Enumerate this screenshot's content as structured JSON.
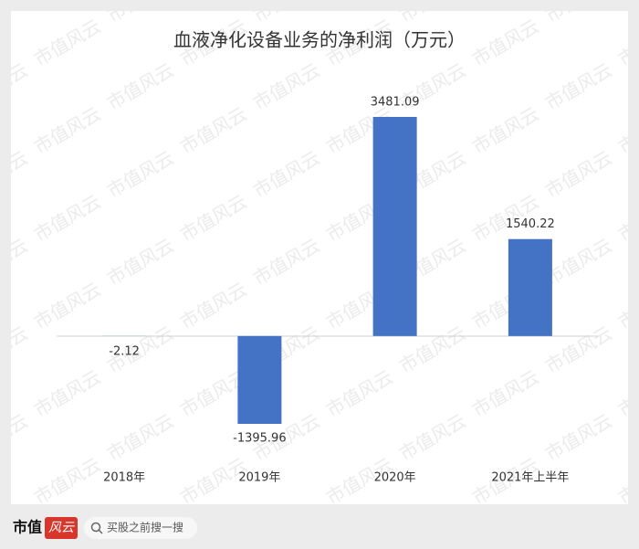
{
  "chart_data": {
    "type": "bar",
    "title": "血液净化设备业务的净利润（万元）",
    "categories": [
      "2018年",
      "2019年",
      "2020年",
      "2021年上半年"
    ],
    "values": [
      -2.12,
      -1395.96,
      3481.09,
      1540.22
    ],
    "color": "#4472c4"
  },
  "watermark": "市值风云",
  "footer": {
    "logo_text": "市值",
    "logo_mark": "风云",
    "search_placeholder": "买股之前搜一搜"
  }
}
